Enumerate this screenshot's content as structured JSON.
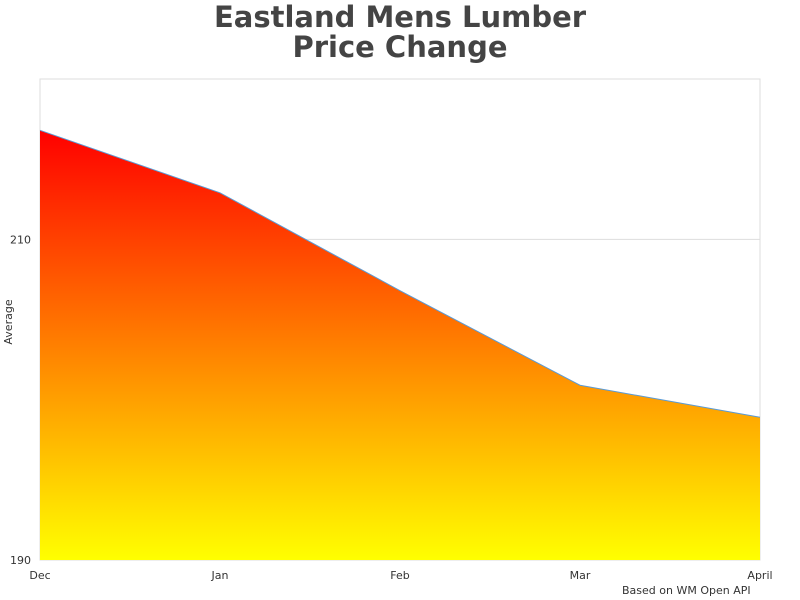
{
  "chart": {
    "title_line1": "Eastland Mens Lumber",
    "title_line2": "Price Change",
    "footer": "Based on WM Open API"
  },
  "colors": {
    "gradient_top": "#ff0000",
    "gradient_bottom": "#ffff00",
    "line": "#5b9bd5",
    "grid": "#dddddd",
    "title": "#444444",
    "text": "#333333"
  },
  "chart_data": {
    "type": "area",
    "title": "Eastland Mens Lumber Price Change",
    "xlabel": "",
    "ylabel": "Average",
    "categories": [
      "Dec",
      "Jan",
      "Feb",
      "Mar",
      "April"
    ],
    "values": [
      216.8,
      212.9,
      206.8,
      200.9,
      198.9
    ],
    "ylim": [
      190,
      220
    ],
    "yticks": [
      190,
      210
    ],
    "grid": true,
    "legend": "none"
  }
}
